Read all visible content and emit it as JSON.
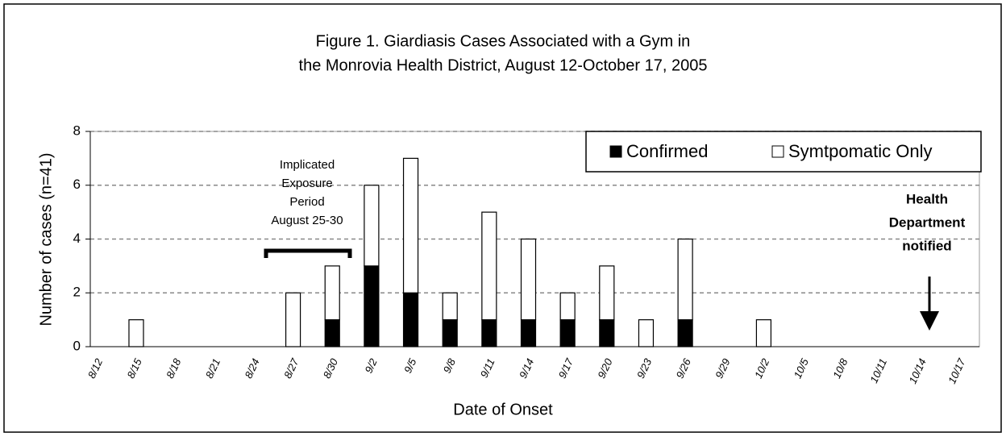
{
  "chart_data": {
    "type": "stacked_bar",
    "title": [
      "Figure 1. Giardiasis Cases Associated with a Gym in",
      "the Monrovia Health District, August 12-October 17, 2005"
    ],
    "x_label": "Date of Onset",
    "y_label": "Number of cases (n=41)",
    "categories": [
      "8/12",
      "8/15",
      "8/18",
      "8/21",
      "8/24",
      "8/27",
      "8/30",
      "9/2",
      "9/5",
      "9/8",
      "9/11",
      "9/14",
      "9/17",
      "9/20",
      "9/23",
      "9/26",
      "9/29",
      "10/2",
      "10/5",
      "10/8",
      "10/11",
      "10/14",
      "10/17"
    ],
    "series": [
      {
        "name": "Confirmed",
        "color": "#000000",
        "values": [
          0,
          0,
          0,
          0,
          0,
          0,
          1,
          3,
          2,
          1,
          1,
          1,
          1,
          1,
          0,
          1,
          0,
          0,
          0,
          0,
          0,
          0,
          0
        ]
      },
      {
        "name": "Symtpomatic Only",
        "color": "#ffffff",
        "values": [
          0,
          1,
          0,
          0,
          0,
          2,
          2,
          3,
          5,
          1,
          4,
          3,
          1,
          2,
          1,
          3,
          0,
          1,
          0,
          0,
          0,
          0,
          0
        ]
      }
    ],
    "ylim": [
      0,
      8
    ],
    "yticks": [
      0,
      2,
      4,
      6,
      8
    ],
    "grid": true,
    "legend": "top-right",
    "annotations": [
      {
        "text": [
          "Implicated",
          "Exposure",
          "Period",
          "August 25-30"
        ]
      },
      {
        "text": [
          "Health",
          "Department",
          "notified"
        ]
      }
    ]
  }
}
